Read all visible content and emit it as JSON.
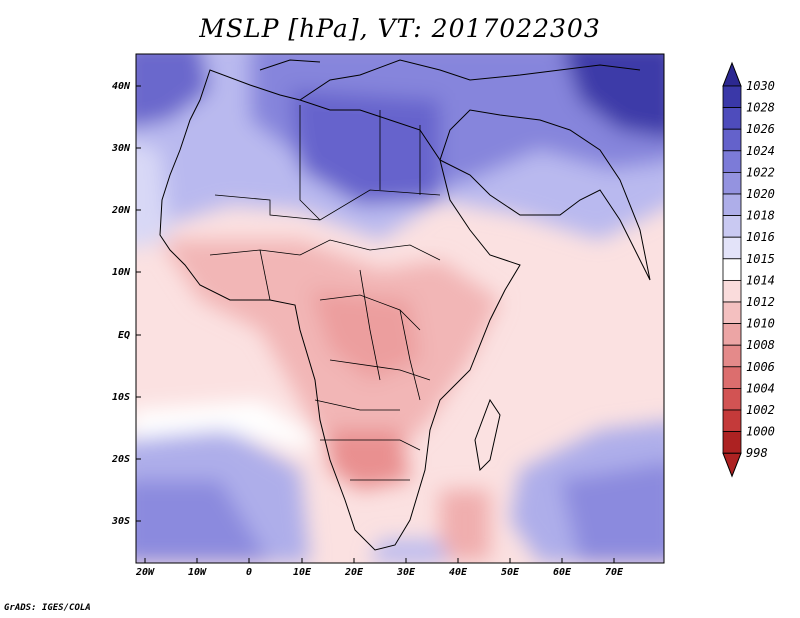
{
  "title": "MSLP [hPa], VT: 2017022303",
  "credit": "GrADS: IGES/COLA",
  "map": {
    "lat_labels": [
      "40N",
      "30N",
      "20N",
      "10N",
      "EQ",
      "10S",
      "20S",
      "30S"
    ],
    "lon_labels": [
      "20W",
      "10W",
      "0",
      "10E",
      "20E",
      "30E",
      "40E",
      "50E",
      "60E",
      "70E"
    ]
  },
  "colorbar": {
    "labels": [
      "1030",
      "1028",
      "1026",
      "1024",
      "1022",
      "1020",
      "1018",
      "1016",
      "1015",
      "1014",
      "1012",
      "1010",
      "1008",
      "1006",
      "1004",
      "1002",
      "1000",
      "998"
    ],
    "colors": [
      "#2c2891",
      "#3a38a8",
      "#4e4cbc",
      "#6462cb",
      "#7c7bd8",
      "#9493e0",
      "#aeaee9",
      "#c9c9f2",
      "#e3e3f9",
      "#ffffff",
      "#fadcdc",
      "#f4c0c0",
      "#eca5a5",
      "#e48a8a",
      "#dc6e6e",
      "#d25353",
      "#c43a3a",
      "#ad2222"
    ]
  }
}
